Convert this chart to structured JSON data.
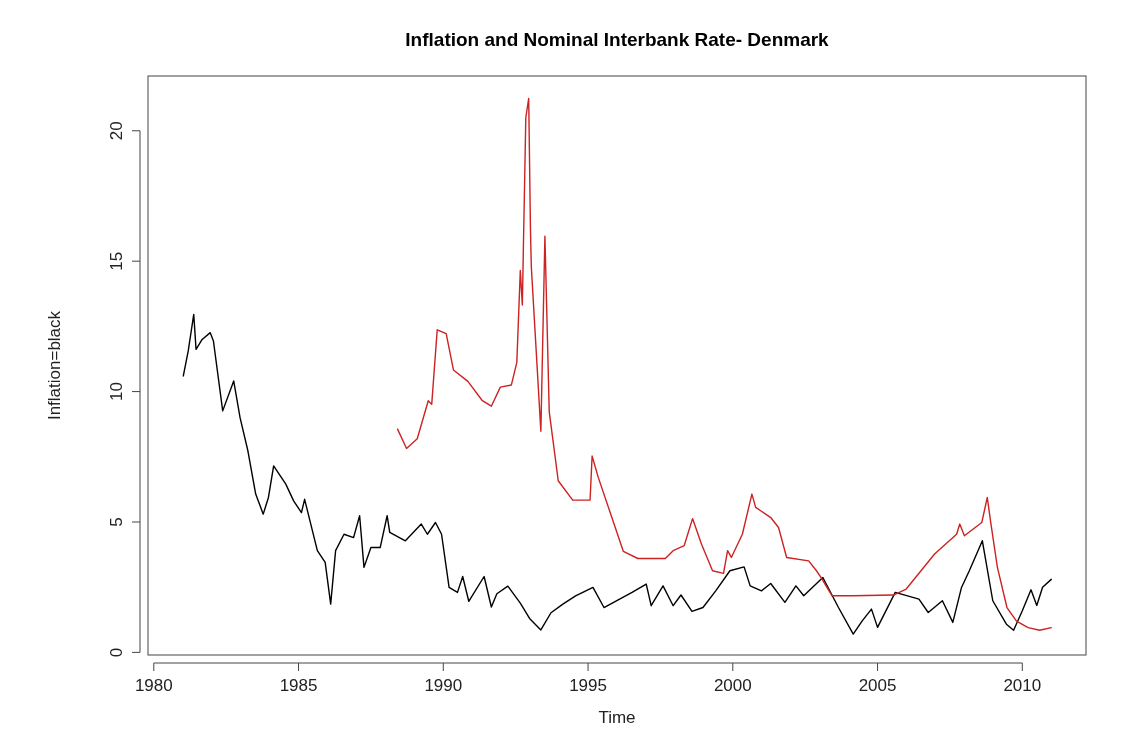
{
  "chart_data": {
    "type": "line",
    "title": "Inflation and Nominal Interbank Rate- Denmark",
    "xlabel": "Time",
    "ylabel": "Inflation=black",
    "xlim": [
      1979.8,
      2012.2
    ],
    "ylim": [
      -0.1,
      22.1
    ],
    "xticks": [
      1980,
      1985,
      1990,
      1995,
      2000,
      2005,
      2010
    ],
    "yticks": [
      0,
      5,
      10,
      15,
      20
    ],
    "grid": false,
    "series": [
      {
        "color": "#000000",
        "x": [
          1981.02,
          1981.19,
          1981.38,
          1981.46,
          1981.67,
          1981.95,
          1982.06,
          1982.38,
          1982.76,
          1982.98,
          1983.25,
          1983.52,
          1983.78,
          1983.96,
          1984.14,
          1984.56,
          1984.83,
          1985.1,
          1985.21,
          1985.65,
          1985.92,
          1986.11,
          1986.28,
          1986.57,
          1986.9,
          1987.11,
          1987.26,
          1987.5,
          1987.82,
          1988.06,
          1988.15,
          1988.69,
          1989.24,
          1989.45,
          1989.73,
          1989.94,
          1990.2,
          1990.49,
          1990.67,
          1990.88,
          1991.41,
          1991.66,
          1991.85,
          1992.23,
          1992.66,
          1992.98,
          1993.37,
          1993.72,
          1994.13,
          1994.57,
          1995.17,
          1995.55,
          1996.09,
          1996.52,
          1997.01,
          1997.18,
          1997.59,
          1997.94,
          1998.21,
          1998.59,
          1998.97,
          1999.41,
          1999.9,
          2000.39,
          2000.6,
          2000.99,
          2001.31,
          2001.8,
          2002.18,
          2002.45,
          2003.11,
          2003.65,
          2004.16,
          2004.47,
          2004.79,
          2005.0,
          2005.61,
          2006.43,
          2006.75,
          2007.24,
          2007.6,
          2007.9,
          2008.17,
          2008.62,
          2008.98,
          2009.45,
          2009.7,
          2010.0,
          2010.3,
          2010.5,
          2010.7,
          2011.0
        ],
        "values": [
          10.6,
          11.56,
          12.96,
          11.62,
          12.0,
          12.26,
          11.94,
          9.26,
          10.41,
          9.0,
          7.73,
          6.07,
          5.3,
          5.94,
          7.15,
          6.45,
          5.81,
          5.36,
          5.87,
          3.9,
          3.45,
          1.85,
          3.9,
          4.53,
          4.4,
          5.24,
          3.26,
          4.02,
          4.02,
          5.24,
          4.6,
          4.28,
          4.92,
          4.53,
          4.98,
          4.53,
          2.49,
          2.3,
          2.91,
          1.96,
          2.91,
          1.74,
          2.25,
          2.54,
          1.89,
          1.3,
          0.86,
          1.52,
          1.85,
          2.17,
          2.49,
          1.72,
          2.04,
          2.3,
          2.62,
          1.79,
          2.55,
          1.79,
          2.2,
          1.57,
          1.72,
          2.36,
          3.13,
          3.28,
          2.55,
          2.36,
          2.64,
          1.92,
          2.55,
          2.17,
          2.87,
          1.72,
          0.7,
          1.21,
          1.66,
          0.96,
          2.3,
          2.04,
          1.53,
          1.98,
          1.15,
          2.49,
          3.13,
          4.28,
          1.98,
          1.08,
          0.85,
          1.6,
          2.4,
          1.8,
          2.5,
          2.8
        ]
      },
      {
        "color": "#cc2222",
        "x": [
          1988.42,
          1988.73,
          1989.1,
          1989.48,
          1989.6,
          1989.79,
          1990.1,
          1990.35,
          1990.85,
          1991.35,
          1991.66,
          1991.97,
          1992.35,
          1992.54,
          1992.66,
          1992.73,
          1992.85,
          1992.95,
          1993.01,
          1993.04,
          1993.37,
          1993.51,
          1993.66,
          1993.97,
          1994.47,
          1995.07,
          1995.14,
          1995.35,
          1996.22,
          1996.72,
          1997.67,
          1997.94,
          1998.32,
          1998.61,
          1998.92,
          1999.3,
          1999.68,
          1999.82,
          1999.95,
          2000.33,
          2000.66,
          2000.79,
          2001.31,
          2001.58,
          2001.86,
          2002.62,
          2002.89,
          2003.05,
          2003.43,
          2004.14,
          2005.55,
          2005.99,
          2006.97,
          2007.73,
          2007.84,
          2008.0,
          2008.6,
          2008.79,
          2008.9,
          2009.14,
          2009.47,
          2009.8,
          2010.2,
          2010.6,
          2011.0
        ],
        "values": [
          8.56,
          7.82,
          8.19,
          9.65,
          9.51,
          12.37,
          12.22,
          10.83,
          10.39,
          9.65,
          9.44,
          10.17,
          10.25,
          11.12,
          14.64,
          13.32,
          20.5,
          21.24,
          16.26,
          14.79,
          8.48,
          15.96,
          9.22,
          6.58,
          5.84,
          5.84,
          7.53,
          6.72,
          3.87,
          3.6,
          3.6,
          3.9,
          4.09,
          5.13,
          4.15,
          3.13,
          3.03,
          3.9,
          3.64,
          4.53,
          6.07,
          5.56,
          5.17,
          4.79,
          3.64,
          3.51,
          3.13,
          2.87,
          2.17,
          2.17,
          2.2,
          2.43,
          3.77,
          4.53,
          4.92,
          4.47,
          4.98,
          5.94,
          5.05,
          3.26,
          1.72,
          1.2,
          0.95,
          0.85,
          0.95
        ]
      }
    ]
  }
}
